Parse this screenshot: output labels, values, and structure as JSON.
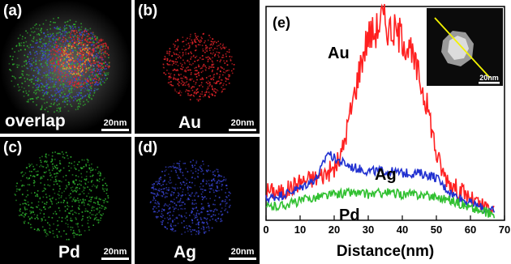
{
  "panels": [
    {
      "id": "a",
      "tag": "(a)",
      "element": "overlap",
      "scale": "20nm",
      "color": "#ffffff"
    },
    {
      "id": "b",
      "tag": "(b)",
      "element": "Au",
      "scale": "20nm",
      "color": "#e8242a"
    },
    {
      "id": "c",
      "tag": "(c)",
      "element": "Pd",
      "scale": "20nm",
      "color": "#2fb52f"
    },
    {
      "id": "d",
      "tag": "(d)",
      "element": "Ag",
      "scale": "20nm",
      "color": "#3a46d8"
    }
  ],
  "chart_data": {
    "type": "line",
    "panel_tag": "(e)",
    "title": "",
    "xlabel": "Distance(nm)",
    "ylabel": "",
    "xlim": [
      0,
      70
    ],
    "xticks": [
      "0",
      "10",
      "20",
      "30",
      "40",
      "50",
      "60",
      "70"
    ],
    "inset_scale": "20nm",
    "series": [
      {
        "name": "Au",
        "color": "#ff2020",
        "x": [
          0,
          5,
          10,
          15,
          20,
          22,
          25,
          28,
          30,
          32,
          34,
          36,
          38,
          40,
          42,
          45,
          48,
          50,
          52,
          55,
          58,
          60,
          63,
          67
        ],
        "y": [
          0.14,
          0.13,
          0.18,
          0.2,
          0.24,
          0.3,
          0.52,
          0.75,
          0.87,
          0.88,
          0.95,
          0.9,
          0.88,
          0.86,
          0.8,
          0.67,
          0.49,
          0.31,
          0.22,
          0.16,
          0.13,
          0.1,
          0.07,
          0.04
        ]
      },
      {
        "name": "Ag",
        "color": "#2030d0",
        "x": [
          0,
          5,
          10,
          15,
          17,
          18,
          20,
          25,
          30,
          35,
          40,
          45,
          48,
          50,
          52,
          55,
          60,
          63,
          67
        ],
        "y": [
          0.1,
          0.12,
          0.15,
          0.2,
          0.27,
          0.32,
          0.29,
          0.25,
          0.23,
          0.23,
          0.22,
          0.22,
          0.21,
          0.2,
          0.16,
          0.12,
          0.08,
          0.06,
          0.04
        ]
      },
      {
        "name": "Pd",
        "color": "#30c030",
        "x": [
          0,
          5,
          10,
          15,
          20,
          25,
          30,
          35,
          40,
          45,
          50,
          55,
          60,
          63,
          67
        ],
        "y": [
          0.06,
          0.07,
          0.09,
          0.11,
          0.12,
          0.13,
          0.12,
          0.13,
          0.12,
          0.12,
          0.11,
          0.09,
          0.06,
          0.04,
          0.03
        ]
      }
    ]
  }
}
